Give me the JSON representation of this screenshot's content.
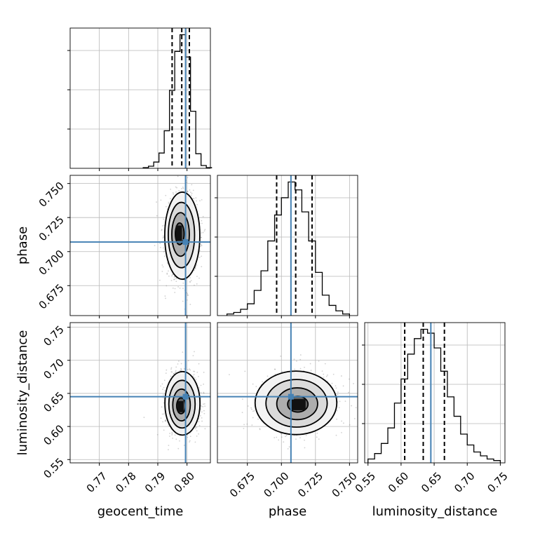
{
  "chart_data": {
    "type": "corner",
    "parameters": [
      "geocent_time",
      "phase",
      "luminosity_distance"
    ],
    "axis_labels": [
      "geocent_time",
      "phase",
      "luminosity_distance"
    ],
    "ranges": [
      [
        0.76,
        0.808
      ],
      [
        0.653,
        0.756
      ],
      [
        0.545,
        0.757
      ]
    ],
    "ticks": [
      [
        0.77,
        0.78,
        0.79,
        0.8
      ],
      [
        0.675,
        0.7,
        0.725,
        0.75
      ],
      [
        0.55,
        0.6,
        0.65,
        0.7,
        0.75
      ]
    ],
    "tick_labels": [
      [
        "0.77",
        "0.78",
        "0.79",
        "0.80"
      ],
      [
        "0.675",
        "0.700",
        "0.725",
        "0.750"
      ],
      [
        "0.55",
        "0.60",
        "0.65",
        "0.70",
        "0.75"
      ]
    ],
    "truths": [
      0.7995,
      0.707,
      0.645
    ],
    "truth_color": "#4682b4",
    "quantiles": [
      [
        0.7949,
        0.7982,
        0.8008
      ],
      [
        0.6965,
        0.7105,
        0.7225
      ],
      [
        0.6055,
        0.6335,
        0.6655
      ]
    ],
    "histograms": [
      {
        "bin_edges": [
          0.785,
          0.7868,
          0.7886,
          0.7904,
          0.7922,
          0.794,
          0.7958,
          0.7976,
          0.7994,
          0.8012,
          0.803,
          0.8048,
          0.8066,
          0.8084
        ],
        "counts": [
          1,
          3,
          9,
          22,
          54,
          112,
          168,
          192,
          160,
          82,
          21,
          4,
          1
        ]
      },
      {
        "bin_edges": [
          0.66,
          0.665,
          0.67,
          0.675,
          0.68,
          0.685,
          0.69,
          0.695,
          0.7,
          0.705,
          0.71,
          0.715,
          0.72,
          0.725,
          0.73,
          0.735,
          0.74,
          0.745,
          0.75
        ],
        "counts": [
          2,
          4,
          8,
          15,
          32,
          57,
          95,
          128,
          150,
          170,
          160,
          132,
          95,
          55,
          26,
          13,
          6,
          2
        ]
      },
      {
        "bin_edges": [
          0.55,
          0.56,
          0.57,
          0.58,
          0.59,
          0.6,
          0.61,
          0.62,
          0.63,
          0.64,
          0.65,
          0.66,
          0.67,
          0.68,
          0.69,
          0.7,
          0.71,
          0.72,
          0.73,
          0.74,
          0.75
        ],
        "counts": [
          5,
          12,
          25,
          45,
          77,
          108,
          140,
          160,
          172,
          167,
          148,
          118,
          85,
          60,
          37,
          23,
          14,
          9,
          5,
          3
        ]
      }
    ],
    "posterior_2d": [
      {
        "x": "geocent_time",
        "y": "phase",
        "mean": [
          0.7985,
          0.7115
        ],
        "sd": [
          0.003,
          0.016
        ],
        "peak": [
          0.7972,
          0.7135
        ]
      },
      {
        "x": "geocent_time",
        "y": "luminosity_distance",
        "mean": [
          0.7985,
          0.6355
        ],
        "sd": [
          0.003,
          0.024
        ],
        "peak": [
          0.7978,
          0.63
        ]
      },
      {
        "x": "phase",
        "y": "luminosity_distance",
        "mean": [
          0.7105,
          0.636
        ],
        "sd": [
          0.015,
          0.024
        ],
        "peak": [
          0.7125,
          0.633
        ]
      }
    ],
    "grid": true,
    "legend": "none"
  }
}
